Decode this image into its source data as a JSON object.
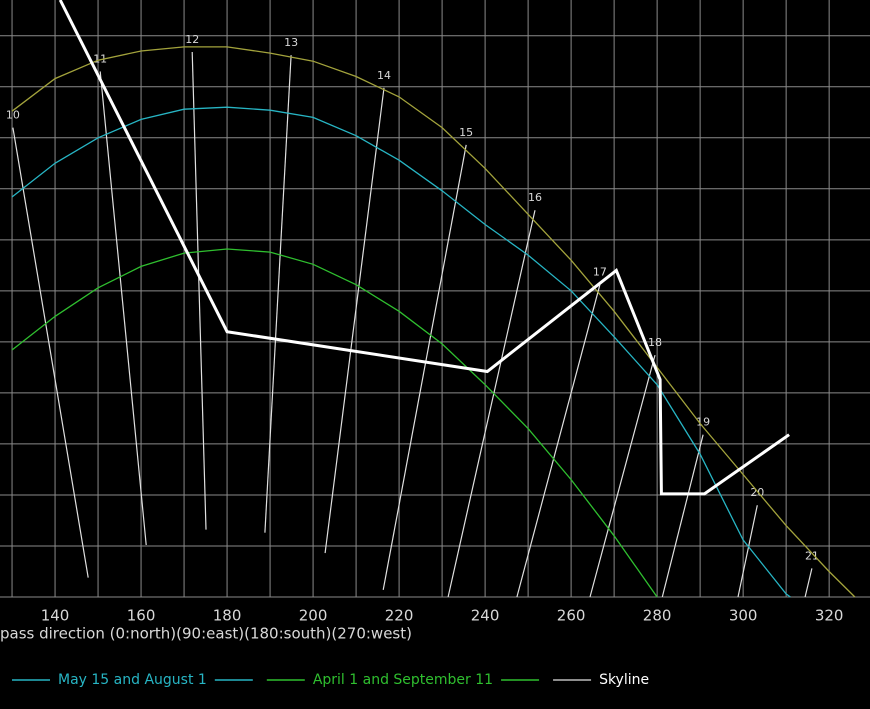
{
  "chart_data": {
    "type": "line",
    "x_label": "pass direction (0:north)(90:east)(180:south)(270:west)",
    "xlim": [
      127.2,
      329.5
    ],
    "ylim": [
      0,
      58.5
    ],
    "xticks": [
      140,
      160,
      180,
      200,
      220,
      240,
      260,
      280,
      300,
      320
    ],
    "xminor": [
      130,
      150,
      170,
      190,
      210,
      230,
      250,
      270,
      290,
      310,
      330
    ],
    "yticks": [
      0,
      5,
      10,
      15,
      20,
      25,
      30,
      35,
      40,
      45,
      50,
      55
    ],
    "grid": true,
    "series": [
      {
        "color": "#a3a33c",
        "x": [
          130,
          140,
          150,
          160,
          170,
          180,
          190,
          200,
          210,
          220,
          230,
          240,
          250,
          260,
          270,
          280,
          290,
          300,
          310,
          320,
          326
        ],
        "values": [
          47.6,
          50.8,
          52.6,
          53.5,
          53.9,
          53.9,
          53.3,
          52.5,
          51.0,
          49.0,
          46.0,
          42.0,
          37.5,
          33.0,
          28.0,
          22.5,
          17.0,
          12.0,
          7.0,
          2.5,
          0
        ]
      },
      {
        "name": "May 15 and August 1",
        "color": "#27b5c4",
        "x": [
          130,
          140,
          150,
          160,
          170,
          180,
          190,
          200,
          210,
          220,
          230,
          240,
          250,
          260,
          270,
          280,
          290,
          300,
          310,
          311
        ],
        "values": [
          39.2,
          42.5,
          45.0,
          46.8,
          47.8,
          48.0,
          47.7,
          47.0,
          45.2,
          42.8,
          39.8,
          36.5,
          33.5,
          30.0,
          25.5,
          20.8,
          14.0,
          5.6,
          0.3,
          0
        ]
      },
      {
        "name": "April 1 and September 11",
        "color": "#2fbf2f",
        "x": [
          130,
          140,
          150,
          160,
          170,
          180,
          190,
          200,
          210,
          220,
          230,
          240,
          250,
          260,
          270,
          280
        ],
        "values": [
          24.2,
          27.5,
          30.3,
          32.4,
          33.7,
          34.1,
          33.8,
          32.6,
          30.6,
          28.0,
          24.8,
          20.8,
          16.5,
          11.5,
          6.0,
          0
        ]
      },
      {
        "name": "Skyline",
        "color": "#ffffff",
        "x": [
          141.2,
          180,
          240.5,
          270.5,
          280.7,
          281,
          291,
          310.7
        ],
        "values": [
          58.5,
          26,
          22.1,
          32,
          21.3,
          10.1,
          10.1,
          15.9
        ]
      }
    ],
    "hour_lines": [
      {
        "label": "10",
        "x": [
          130.2,
          147.7
        ],
        "values": [
          46.0,
          1.9
        ]
      },
      {
        "label": "11",
        "x": [
          150.5,
          161.2
        ],
        "values": [
          51.5,
          5.1
        ]
      },
      {
        "label": "12",
        "x": [
          171.9,
          175.1
        ],
        "values": [
          53.4,
          6.6
        ]
      },
      {
        "label": "13",
        "x": [
          194.9,
          188.8
        ],
        "values": [
          53.1,
          6.3
        ]
      },
      {
        "label": "14",
        "x": [
          216.5,
          202.8
        ],
        "values": [
          49.9,
          4.3
        ]
      },
      {
        "label": "15",
        "x": [
          235.6,
          216.3
        ],
        "values": [
          44.3,
          0.7
        ]
      },
      {
        "label": "16",
        "x": [
          251.6,
          231.4
        ],
        "values": [
          37.9,
          0
        ]
      },
      {
        "label": "17",
        "x": [
          266.7,
          247.4
        ],
        "values": [
          30.6,
          0
        ]
      },
      {
        "label": "18",
        "x": [
          279.5,
          264.4
        ],
        "values": [
          23.7,
          0
        ]
      },
      {
        "label": "19",
        "x": [
          290.7,
          281.2
        ],
        "values": [
          15.9,
          0
        ]
      },
      {
        "label": "20",
        "x": [
          303.3,
          298.8
        ],
        "values": [
          9.0,
          0
        ]
      },
      {
        "label": "21",
        "x": [
          316.0,
          314.4
        ],
        "values": [
          2.8,
          0
        ]
      }
    ]
  }
}
